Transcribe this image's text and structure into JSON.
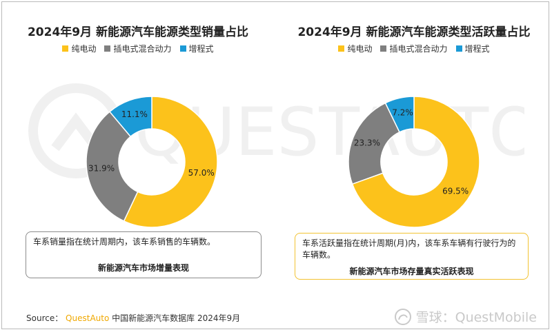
{
  "colors": {
    "bev": "#fcc21b",
    "phev": "#7f7f7f",
    "erev": "#1b9ad6",
    "note_left_border": "#8c8c8c",
    "note_right_border": "#f2c230",
    "brand": "#f0a800"
  },
  "watermark": {
    "text": "QUESTAUTO"
  },
  "chart_data": [
    {
      "type": "pie",
      "title": "2024年9月 新能源汽车能源类型销量占比",
      "categories": [
        "纯电动",
        "插电式混合动力",
        "增程式"
      ],
      "values": [
        57.0,
        31.9,
        11.1
      ],
      "labels": [
        "57.0%",
        "31.9%",
        "11.1%"
      ],
      "legend_position": "top",
      "donut": true,
      "note": {
        "text": "车系销量指在统计周期内，该车系销售的车辆数。",
        "footer": "新能源汽车市场增量表现"
      }
    },
    {
      "type": "pie",
      "title": "2024年9月 新能源汽车能源类型活跃量占比",
      "categories": [
        "纯电动",
        "插电式混合动力",
        "增程式"
      ],
      "values": [
        69.5,
        23.3,
        7.2
      ],
      "labels": [
        "69.5%",
        "23.3%",
        "7.2%"
      ],
      "legend_position": "top",
      "donut": true,
      "note": {
        "text": "车系活跃量指在统计周期(月)内，该车系车辆有行驶行为的车辆数。",
        "footer": "新能源汽车市场存量真实活跃表现"
      }
    }
  ],
  "source": {
    "prefix": "Source：",
    "brand": "QuestAuto",
    "rest": "中国新能源汽车数据库 2024年9月"
  },
  "corner_logo": {
    "text": "雪球：QuestMobile"
  }
}
